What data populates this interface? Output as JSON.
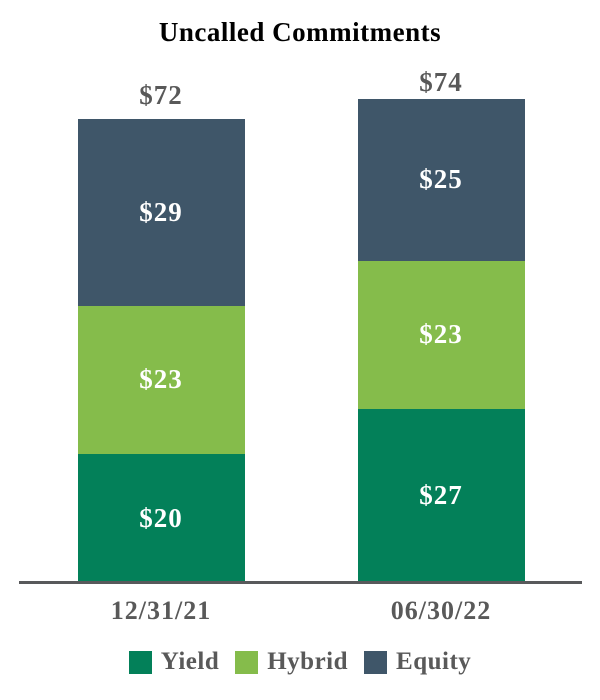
{
  "title": "Uncalled Commitments",
  "colors": {
    "yield": "#038059",
    "hybrid": "#85bc4b",
    "equity": "#3f5669",
    "label_text": "#ffffff",
    "gray_text": "#595959",
    "axis": "#58595b",
    "title_text": "#000000",
    "background": "#ffffff"
  },
  "chart_data": {
    "type": "bar",
    "stacked": true,
    "title": "Uncalled Commitments",
    "categories": [
      "12/31/21",
      "06/30/22"
    ],
    "series": [
      {
        "name": "Yield",
        "color_key": "yield",
        "values": [
          20,
          27
        ]
      },
      {
        "name": "Hybrid",
        "color_key": "hybrid",
        "values": [
          23,
          23
        ]
      },
      {
        "name": "Equity",
        "color_key": "equity",
        "values": [
          29,
          25
        ]
      }
    ],
    "totals": [
      72,
      74
    ],
    "value_prefix": "$",
    "unit": "dollars (billions implied)",
    "legend": [
      "Yield",
      "Hybrid",
      "Equity"
    ],
    "legend_position": "bottom",
    "xlabel": "",
    "ylabel": "",
    "gridlines": false,
    "baseline_axis": true,
    "value_labels": "inside-segments-white",
    "total_labels": "above-bars-gray"
  }
}
